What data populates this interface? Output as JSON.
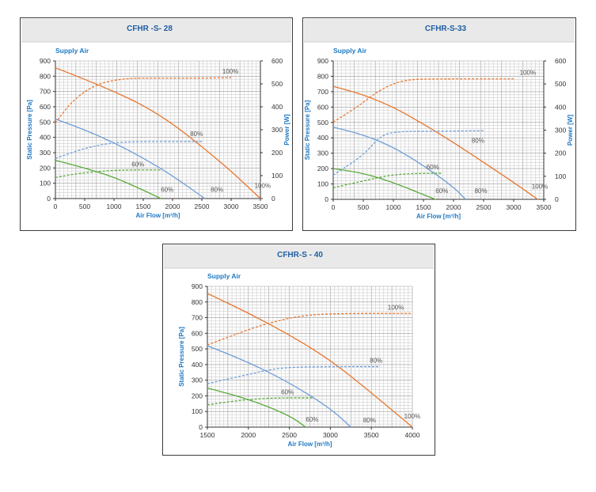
{
  "chart_data": [
    {
      "type": "line",
      "title": "CFHR -S- 28",
      "subtitle": "Supply Air",
      "xlabel": "Air Flow [m³/h]",
      "ylabel": "Static Pressure [Pa]",
      "y2label": "Power [W]",
      "xlim": [
        0,
        3500
      ],
      "ylim": [
        0,
        900
      ],
      "y2lim": [
        0,
        600
      ],
      "xticks": [
        "0",
        "500",
        "1000",
        "1500",
        "2000",
        "2500",
        "3000",
        "3500"
      ],
      "yticks": [
        "0",
        "100",
        "200",
        "300",
        "400",
        "500",
        "600",
        "700",
        "800",
        "900"
      ],
      "y2ticks": [
        "0",
        "100",
        "200",
        "300",
        "400",
        "500",
        "600"
      ],
      "grid": true,
      "series": [
        {
          "name": "100%",
          "axis": "pressure",
          "color": "#e8762d",
          "points": [
            [
              0,
              855
            ],
            [
              500,
              780
            ],
            [
              1000,
              700
            ],
            [
              1500,
              610
            ],
            [
              2000,
              490
            ],
            [
              2500,
              340
            ],
            [
              3000,
              180
            ],
            [
              3500,
              0
            ]
          ],
          "label_at": [
            3400,
            70
          ]
        },
        {
          "name": "100%",
          "axis": "power",
          "color": "#e8762d",
          "dashed": true,
          "points": [
            [
              0,
              330
            ],
            [
              300,
              430
            ],
            [
              700,
              500
            ],
            [
              1200,
              525
            ],
            [
              1800,
              525
            ],
            [
              2500,
              525
            ],
            [
              3000,
              527
            ]
          ],
          "label_at": [
            2850,
            545
          ]
        },
        {
          "name": "80%",
          "axis": "pressure",
          "color": "#6f9ed8",
          "points": [
            [
              0,
              520
            ],
            [
              500,
              450
            ],
            [
              1000,
              365
            ],
            [
              1500,
              265
            ],
            [
              2000,
              150
            ],
            [
              2550,
              0
            ]
          ],
          "label_at": [
            2650,
            45
          ]
        },
        {
          "name": "80%",
          "axis": "power",
          "color": "#6f9ed8",
          "dashed": true,
          "points": [
            [
              0,
              175
            ],
            [
              500,
              220
            ],
            [
              1000,
              245
            ],
            [
              1500,
              248
            ],
            [
              2200,
              248
            ],
            [
              2500,
              248
            ]
          ],
          "label_at": [
            2300,
            272
          ]
        },
        {
          "name": "60%",
          "axis": "pressure",
          "color": "#5aaa3c",
          "points": [
            [
              0,
              250
            ],
            [
              500,
              200
            ],
            [
              1000,
              140
            ],
            [
              1500,
              55
            ],
            [
              1800,
              0
            ]
          ],
          "label_at": [
            1800,
            45
          ]
        },
        {
          "name": "60%",
          "axis": "power",
          "color": "#5aaa3c",
          "dashed": true,
          "points": [
            [
              0,
              92
            ],
            [
              400,
              110
            ],
            [
              900,
              122
            ],
            [
              1300,
              125
            ],
            [
              1800,
              125
            ]
          ],
          "label_at": [
            1300,
            140
          ]
        }
      ]
    },
    {
      "type": "line",
      "title": "CFHR-S-33",
      "subtitle": "Supply Air",
      "xlabel": "Air Flow [m³/h]",
      "ylabel": "Static Pressure [Pa]",
      "y2label": "Power [W]",
      "xlim": [
        0,
        3500
      ],
      "ylim": [
        0,
        900
      ],
      "y2lim": [
        0,
        600
      ],
      "xticks": [
        "0",
        "500",
        "1000",
        "1500",
        "2000",
        "2500",
        "3000",
        "3500"
      ],
      "yticks": [
        "0",
        "100",
        "200",
        "300",
        "400",
        "500",
        "600",
        "700",
        "800",
        "900"
      ],
      "y2ticks": [
        "0",
        "100",
        "200",
        "300",
        "400",
        "500",
        "600"
      ],
      "grid": true,
      "series": [
        {
          "name": "100%",
          "axis": "pressure",
          "color": "#e8762d",
          "points": [
            [
              0,
              735
            ],
            [
              500,
              680
            ],
            [
              1000,
              600
            ],
            [
              1500,
              490
            ],
            [
              2000,
              370
            ],
            [
              2500,
              240
            ],
            [
              3000,
              110
            ],
            [
              3400,
              0
            ]
          ],
          "label_at": [
            3300,
            70
          ]
        },
        {
          "name": "100%",
          "axis": "power",
          "color": "#e8762d",
          "dashed": true,
          "points": [
            [
              0,
              335
            ],
            [
              400,
              400
            ],
            [
              800,
              480
            ],
            [
              1200,
              520
            ],
            [
              1800,
              522
            ],
            [
              3000,
              522
            ]
          ],
          "label_at": [
            3100,
            540
          ]
        },
        {
          "name": "80%",
          "axis": "pressure",
          "color": "#6f9ed8",
          "points": [
            [
              0,
              470
            ],
            [
              500,
              420
            ],
            [
              1000,
              340
            ],
            [
              1500,
              220
            ],
            [
              2000,
              80
            ],
            [
              2200,
              0
            ]
          ],
          "label_at": [
            2350,
            40
          ]
        },
        {
          "name": "80%",
          "axis": "power",
          "color": "#6f9ed8",
          "dashed": true,
          "points": [
            [
              0,
              105
            ],
            [
              500,
              190
            ],
            [
              800,
              280
            ],
            [
              1100,
              295
            ],
            [
              1800,
              295
            ],
            [
              2500,
              298
            ]
          ],
          "label_at": [
            2300,
            245
          ]
        },
        {
          "name": "60%",
          "axis": "pressure",
          "color": "#5aaa3c",
          "points": [
            [
              0,
              200
            ],
            [
              500,
              170
            ],
            [
              1000,
              110
            ],
            [
              1500,
              30
            ],
            [
              1700,
              0
            ]
          ],
          "label_at": [
            1700,
            40
          ]
        },
        {
          "name": "60%",
          "axis": "power",
          "color": "#5aaa3c",
          "dashed": true,
          "points": [
            [
              0,
              50
            ],
            [
              500,
              80
            ],
            [
              1000,
              108
            ],
            [
              1500,
              113
            ],
            [
              1800,
              113
            ]
          ],
          "label_at": [
            1550,
            130
          ]
        }
      ]
    },
    {
      "type": "line",
      "title": "CFHR-S - 40",
      "subtitle": "Supply Air",
      "xlabel": "Air Flow [m³/h]",
      "ylabel": "Static Pressure [Pa]",
      "xlim": [
        1500,
        4000
      ],
      "ylim": [
        0,
        900
      ],
      "y2lim": [
        0,
        600
      ],
      "xticks": [
        "1500",
        "2000",
        "2500",
        "3000",
        "3500",
        "4000"
      ],
      "yticks": [
        "0",
        "100",
        "200",
        "300",
        "400",
        "500",
        "600",
        "700",
        "800",
        "900"
      ],
      "grid": true,
      "series": [
        {
          "name": "100%",
          "axis": "pressure",
          "color": "#e8762d",
          "points": [
            [
              1500,
              855
            ],
            [
              2000,
              730
            ],
            [
              2500,
              590
            ],
            [
              3000,
              430
            ],
            [
              3500,
              220
            ],
            [
              4000,
              0
            ]
          ],
          "label_at": [
            3900,
            55
          ]
        },
        {
          "name": "100%",
          "axis": "power",
          "color": "#e8762d",
          "dashed": true,
          "points": [
            [
              1500,
              350
            ],
            [
              1800,
              390
            ],
            [
              2200,
              440
            ],
            [
              2700,
              480
            ],
            [
              3300,
              485
            ],
            [
              3980,
              485
            ]
          ],
          "label_at": [
            3700,
            500
          ]
        },
        {
          "name": "80%",
          "axis": "pressure",
          "color": "#6f9ed8",
          "points": [
            [
              1500,
              520
            ],
            [
              2000,
              415
            ],
            [
              2500,
              285
            ],
            [
              3000,
              120
            ],
            [
              3250,
              0
            ]
          ],
          "label_at": [
            3400,
            30
          ]
        },
        {
          "name": "80%",
          "axis": "power",
          "color": "#6f9ed8",
          "dashed": true,
          "points": [
            [
              1500,
              185
            ],
            [
              2000,
              225
            ],
            [
              2400,
              255
            ],
            [
              3000,
              258
            ],
            [
              3600,
              258
            ]
          ],
          "label_at": [
            3480,
            275
          ]
        },
        {
          "name": "60%",
          "axis": "pressure",
          "color": "#5aaa3c",
          "points": [
            [
              1500,
              250
            ],
            [
              2000,
              180
            ],
            [
              2500,
              75
            ],
            [
              2700,
              0
            ]
          ],
          "label_at": [
            2700,
            35
          ]
        },
        {
          "name": "60%",
          "axis": "power",
          "color": "#5aaa3c",
          "dashed": true,
          "points": [
            [
              1500,
              95
            ],
            [
              1900,
              115
            ],
            [
              2300,
              125
            ],
            [
              2800,
              125
            ]
          ],
          "label_at": [
            2400,
            140
          ]
        }
      ]
    }
  ]
}
